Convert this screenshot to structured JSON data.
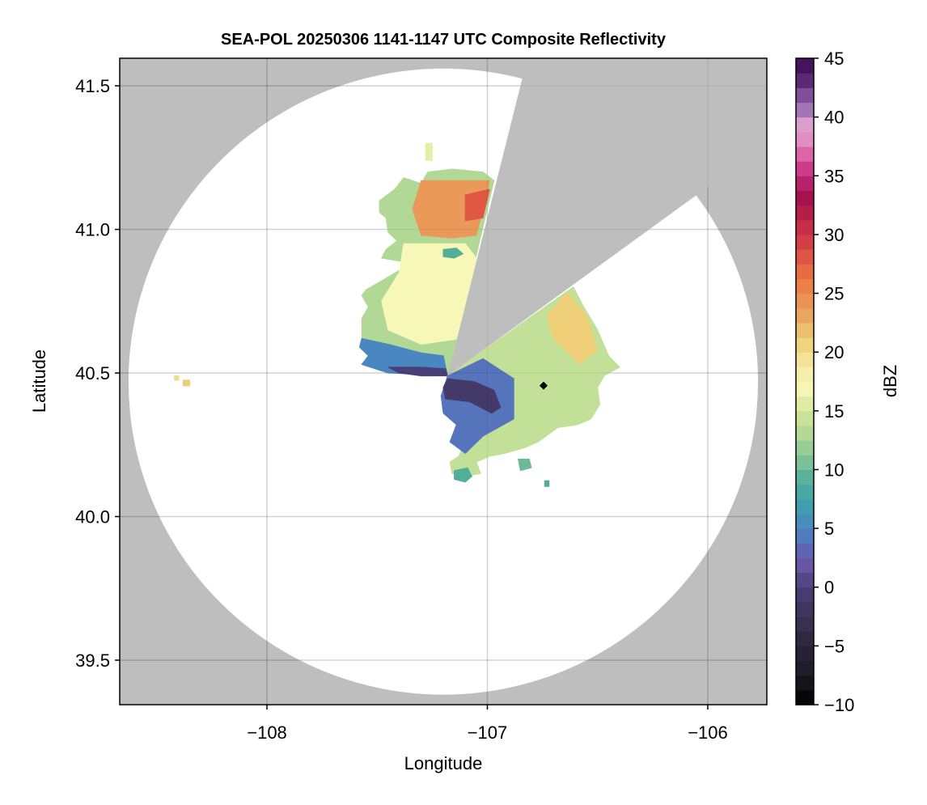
{
  "chart_data": {
    "type": "heatmap",
    "title": "SEA-POL 20250306 1141-1147 UTC Composite Reflectivity",
    "xlabel": "Longitude",
    "ylabel": "Latitude",
    "xlim": [
      -108.668,
      -105.732
    ],
    "ylim": [
      39.345,
      41.596
    ],
    "xticks": [
      -108,
      -107,
      -106
    ],
    "xtick_labels": [
      "−108",
      "−107",
      "−106"
    ],
    "yticks": [
      39.5,
      40.0,
      40.5,
      41.0,
      41.5
    ],
    "ytick_labels": [
      "39.5",
      "40.0",
      "40.5",
      "41.0",
      "41.5"
    ],
    "grid": true,
    "background_color": "#bebebe",
    "coverage_color": "#ffffff",
    "radar_coverage": {
      "center": [
        -107.2,
        40.47
      ],
      "radius_lon": 1.428,
      "radius_lat": 1.09
    },
    "radar_site": [
      -107.18,
      40.49
    ],
    "blocked_sector_rays": [
      [
        -106.84,
        41.53
      ],
      [
        -106.05,
        41.12
      ]
    ],
    "colorbar": {
      "label": "dBZ",
      "range": [
        -10,
        45
      ],
      "band_width": 1.25,
      "ticks": [
        -10,
        -5,
        0,
        5,
        10,
        15,
        20,
        25,
        30,
        35,
        40,
        45
      ],
      "tick_labels": [
        "−10",
        "−5",
        "0",
        "5",
        "10",
        "15",
        "20",
        "25",
        "30",
        "35",
        "40",
        "45"
      ],
      "stops": [
        [
          -10,
          "#000000"
        ],
        [
          -7.5,
          "#1a1a24"
        ],
        [
          -5,
          "#2a2538"
        ],
        [
          -2.5,
          "#3b3356"
        ],
        [
          0,
          "#4a3f78"
        ],
        [
          2,
          "#6a56a8"
        ],
        [
          3.5,
          "#5a6bb8"
        ],
        [
          5,
          "#4a86c0"
        ],
        [
          7,
          "#3fa0ae"
        ],
        [
          9,
          "#52ae98"
        ],
        [
          11,
          "#86c497"
        ],
        [
          13,
          "#b2d895"
        ],
        [
          15,
          "#d4e79a"
        ],
        [
          17,
          "#f7f7b8"
        ],
        [
          19,
          "#f4e8a0"
        ],
        [
          21,
          "#eecf78"
        ],
        [
          23,
          "#eaa862"
        ],
        [
          25,
          "#ec8a50"
        ],
        [
          27,
          "#e86a40"
        ],
        [
          29,
          "#d84448"
        ],
        [
          31,
          "#c32a45"
        ],
        [
          33,
          "#a3104a"
        ],
        [
          35,
          "#c2287a"
        ],
        [
          36.5,
          "#dc56a0"
        ],
        [
          38,
          "#e48cc0"
        ],
        [
          39.5,
          "#dca0cf"
        ],
        [
          40,
          "#b088c0"
        ],
        [
          41.5,
          "#8e5aa8"
        ],
        [
          43,
          "#5f2a78"
        ],
        [
          45,
          "#3a0a4f"
        ]
      ]
    },
    "echo_regions": [
      {
        "name": "north-lobe",
        "dbz": 13,
        "polygon": [
          [
            -106.97,
            41.17
          ],
          [
            -107.02,
            41.2
          ],
          [
            -107.16,
            41.21
          ],
          [
            -107.27,
            41.2
          ],
          [
            -107.3,
            41.16
          ],
          [
            -107.38,
            41.18
          ],
          [
            -107.42,
            41.14
          ],
          [
            -107.49,
            41.1
          ],
          [
            -107.49,
            41.06
          ],
          [
            -107.46,
            41.04
          ],
          [
            -107.45,
            40.99
          ],
          [
            -107.41,
            40.96
          ],
          [
            -107.46,
            40.93
          ],
          [
            -107.48,
            40.9
          ],
          [
            -107.4,
            40.89
          ],
          [
            -107.35,
            40.88
          ],
          [
            -107.46,
            40.83
          ],
          [
            -107.55,
            40.79
          ],
          [
            -107.57,
            40.77
          ],
          [
            -107.54,
            40.73
          ],
          [
            -107.57,
            40.69
          ],
          [
            -107.57,
            40.62
          ],
          [
            -107.58,
            40.59
          ],
          [
            -107.54,
            40.56
          ],
          [
            -107.57,
            40.53
          ],
          [
            -107.45,
            40.5
          ],
          [
            -107.3,
            40.495
          ],
          [
            -107.18,
            40.49
          ]
        ]
      },
      {
        "name": "north-lobe-mid",
        "dbz": 17,
        "polygon": [
          [
            -107.38,
            40.95
          ],
          [
            -107.1,
            40.95
          ],
          [
            -107.05,
            40.9
          ],
          [
            -107.12,
            40.62
          ],
          [
            -107.3,
            40.6
          ],
          [
            -107.45,
            40.65
          ],
          [
            -107.48,
            40.75
          ],
          [
            -107.4,
            40.85
          ]
        ]
      },
      {
        "name": "north-lobe-core",
        "dbz": 24,
        "polygon": [
          [
            -107.3,
            41.17
          ],
          [
            -106.99,
            41.17
          ],
          [
            -107.05,
            40.98
          ],
          [
            -107.16,
            40.97
          ],
          [
            -107.3,
            40.98
          ],
          [
            -107.34,
            41.07
          ]
        ]
      },
      {
        "name": "north-lobe-peak",
        "dbz": 28,
        "polygon": [
          [
            -107.1,
            41.12
          ],
          [
            -106.99,
            41.14
          ],
          [
            -107.02,
            41.04
          ],
          [
            -107.1,
            41.03
          ]
        ]
      },
      {
        "name": "north-lobe-teal-cell",
        "dbz": 9,
        "polygon": [
          [
            -107.2,
            40.93
          ],
          [
            -107.14,
            40.935
          ],
          [
            -107.11,
            40.915
          ],
          [
            -107.15,
            40.9
          ],
          [
            -107.2,
            40.905
          ]
        ]
      },
      {
        "name": "southwest-band",
        "dbz": 5,
        "polygon": [
          [
            -107.57,
            40.62
          ],
          [
            -107.45,
            40.6
          ],
          [
            -107.3,
            40.57
          ],
          [
            -107.2,
            40.56
          ],
          [
            -107.18,
            40.49
          ],
          [
            -107.3,
            40.495
          ],
          [
            -107.45,
            40.5
          ],
          [
            -107.57,
            40.53
          ],
          [
            -107.54,
            40.56
          ],
          [
            -107.58,
            40.59
          ]
        ]
      },
      {
        "name": "southwest-edge",
        "dbz": 0,
        "polygon": [
          [
            -107.45,
            40.52
          ],
          [
            -107.3,
            40.52
          ],
          [
            -107.19,
            40.515
          ],
          [
            -107.18,
            40.49
          ],
          [
            -107.3,
            40.49
          ],
          [
            -107.4,
            40.5
          ]
        ]
      },
      {
        "name": "south-lobe",
        "dbz": 14,
        "polygon": [
          [
            -106.61,
            40.8
          ],
          [
            -106.57,
            40.74
          ],
          [
            -106.5,
            40.65
          ],
          [
            -106.45,
            40.56
          ],
          [
            -106.4,
            40.52
          ],
          [
            -106.47,
            40.49
          ],
          [
            -106.5,
            40.45
          ],
          [
            -106.49,
            40.39
          ],
          [
            -106.53,
            40.34
          ],
          [
            -106.59,
            40.32
          ],
          [
            -106.68,
            40.31
          ],
          [
            -106.77,
            40.26
          ],
          [
            -106.83,
            40.24
          ],
          [
            -106.92,
            40.22
          ],
          [
            -106.99,
            40.21
          ],
          [
            -107.05,
            40.19
          ],
          [
            -107.03,
            40.15
          ],
          [
            -107.1,
            40.14
          ],
          [
            -107.16,
            40.15
          ],
          [
            -107.17,
            40.19
          ],
          [
            -107.13,
            40.21
          ],
          [
            -107.1,
            40.26
          ],
          [
            -107.14,
            40.32
          ],
          [
            -107.19,
            40.36
          ],
          [
            -107.21,
            40.42
          ],
          [
            -107.19,
            40.45
          ],
          [
            -107.18,
            40.49
          ]
        ]
      },
      {
        "name": "south-lobe-warm",
        "dbz": 21,
        "polygon": [
          [
            -106.64,
            40.78
          ],
          [
            -106.55,
            40.7
          ],
          [
            -106.5,
            40.58
          ],
          [
            -106.58,
            40.53
          ],
          [
            -106.7,
            40.62
          ],
          [
            -106.73,
            40.7
          ]
        ]
      },
      {
        "name": "south-lobe-blue-band",
        "dbz": 4,
        "polygon": [
          [
            -107.18,
            40.49
          ],
          [
            -107.02,
            40.55
          ],
          [
            -106.88,
            40.48
          ],
          [
            -106.88,
            40.34
          ],
          [
            -107.02,
            40.28
          ],
          [
            -107.1,
            40.22
          ],
          [
            -107.17,
            40.26
          ],
          [
            -107.14,
            40.32
          ],
          [
            -107.2,
            40.36
          ],
          [
            -107.21,
            40.42
          ]
        ]
      },
      {
        "name": "south-lobe-dark-cell",
        "dbz": -1,
        "polygon": [
          [
            -107.18,
            40.48
          ],
          [
            -107.06,
            40.47
          ],
          [
            -106.97,
            40.44
          ],
          [
            -106.94,
            40.38
          ],
          [
            -106.98,
            40.36
          ],
          [
            -107.08,
            40.4
          ],
          [
            -107.19,
            40.41
          ],
          [
            -107.2,
            40.45
          ]
        ]
      },
      {
        "name": "south-cell-1",
        "dbz": 9,
        "polygon": [
          [
            -107.15,
            40.16
          ],
          [
            -107.09,
            40.17
          ],
          [
            -107.07,
            40.14
          ],
          [
            -107.1,
            40.12
          ],
          [
            -107.15,
            40.13
          ]
        ]
      },
      {
        "name": "south-cell-2",
        "dbz": 10,
        "polygon": [
          [
            -106.86,
            40.2
          ],
          [
            -106.81,
            40.2
          ],
          [
            -106.8,
            40.17
          ],
          [
            -106.85,
            40.16
          ]
        ]
      },
      {
        "name": "south-cell-3",
        "dbz": 9,
        "polygon": [
          [
            -106.74,
            40.125
          ],
          [
            -106.72,
            40.125
          ],
          [
            -106.72,
            40.105
          ],
          [
            -106.74,
            40.105
          ]
        ]
      },
      {
        "name": "north-speck",
        "dbz": 16,
        "polygon": [
          [
            -107.28,
            41.3
          ],
          [
            -107.25,
            41.3
          ],
          [
            -107.25,
            41.24
          ],
          [
            -107.28,
            41.24
          ]
        ]
      },
      {
        "name": "west-cell-1",
        "dbz": 20,
        "polygon": [
          [
            -108.42,
            40.49
          ],
          [
            -108.4,
            40.49
          ],
          [
            -108.4,
            40.475
          ],
          [
            -108.42,
            40.475
          ]
        ]
      },
      {
        "name": "west-cell-2",
        "dbz": 21,
        "polygon": [
          [
            -108.38,
            40.475
          ],
          [
            -108.35,
            40.475
          ],
          [
            -108.35,
            40.455
          ],
          [
            -108.38,
            40.455
          ]
        ]
      }
    ],
    "marker": {
      "name": "black-diamond-marker",
      "position": [
        -106.745,
        40.456
      ],
      "color": "#000000"
    }
  }
}
